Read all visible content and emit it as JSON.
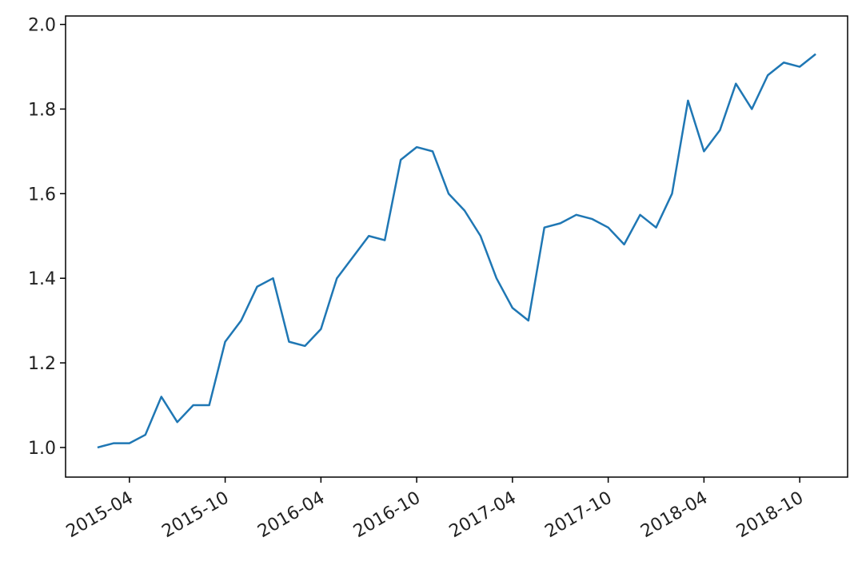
{
  "chart_data": {
    "type": "line",
    "x": [
      "2015-02",
      "2015-03",
      "2015-04",
      "2015-05",
      "2015-06",
      "2015-07",
      "2015-08",
      "2015-09",
      "2015-10",
      "2015-11",
      "2015-12",
      "2016-01",
      "2016-02",
      "2016-03",
      "2016-04",
      "2016-05",
      "2016-06",
      "2016-07",
      "2016-08",
      "2016-09",
      "2016-10",
      "2016-11",
      "2016-12",
      "2017-01",
      "2017-02",
      "2017-03",
      "2017-04",
      "2017-05",
      "2017-06",
      "2017-07",
      "2017-08",
      "2017-09",
      "2017-10",
      "2017-11",
      "2017-12",
      "2018-01",
      "2018-02",
      "2018-03",
      "2018-04",
      "2018-05",
      "2018-06",
      "2018-07",
      "2018-08",
      "2018-09",
      "2018-10",
      "2018-11"
    ],
    "series": [
      {
        "color": "#1f77b4",
        "values": [
          1.0,
          1.01,
          1.01,
          1.03,
          1.12,
          1.06,
          1.1,
          1.1,
          1.25,
          1.3,
          1.38,
          1.4,
          1.25,
          1.24,
          1.28,
          1.4,
          1.45,
          1.5,
          1.49,
          1.68,
          1.71,
          1.7,
          1.6,
          1.56,
          1.5,
          1.4,
          1.33,
          1.3,
          1.52,
          1.53,
          1.55,
          1.54,
          1.52,
          1.48,
          1.55,
          1.52,
          1.6,
          1.82,
          1.7,
          1.75,
          1.86,
          1.8,
          1.88,
          1.91,
          1.9,
          1.93
        ]
      }
    ],
    "xlim": [
      "2014-12",
      "2019-01"
    ],
    "xticks": [
      "2015-04",
      "2015-10",
      "2016-04",
      "2016-10",
      "2017-04",
      "2017-10",
      "2018-04",
      "2018-10"
    ],
    "ylim": [
      0.93,
      2.02
    ],
    "yticks": [
      {
        "value": 1.0,
        "label": "1.0"
      },
      1.2,
      1.4,
      1.6,
      1.8,
      {
        "value": 2.0,
        "label": "2.0"
      }
    ],
    "grid": false
  }
}
